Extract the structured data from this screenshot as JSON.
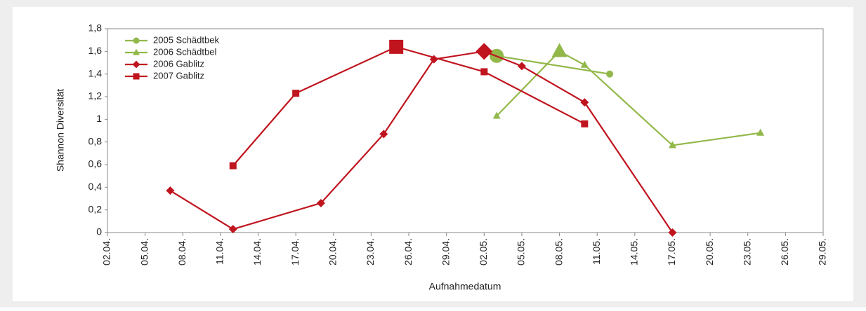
{
  "chart_data": {
    "type": "line",
    "y_label": "Shannon Diversität",
    "x_label": "Aufnahmedatum",
    "ylim": [
      0,
      1.8
    ],
    "yticks": [
      0,
      {
        "value": 0.2,
        "label": "0,2"
      },
      {
        "value": 0.4,
        "label": "0,4"
      },
      {
        "value": 0.6,
        "label": "0,6"
      },
      {
        "value": 0.8,
        "label": "0,8"
      },
      1,
      {
        "value": 1.2,
        "label": "1,2"
      },
      {
        "value": 1.4,
        "label": "1,4"
      },
      {
        "value": 1.6,
        "label": "1,6"
      },
      {
        "value": 1.8,
        "label": "1,8"
      }
    ],
    "xlim": [
      "02.04.",
      "29.05."
    ],
    "xticks": [
      "02.04.",
      "05.04.",
      "08.04.",
      "11.04.",
      "14.04.",
      "17.04.",
      "20.04.",
      "23.04.",
      "26.04.",
      "29.04.",
      "02.05.",
      "05.05.",
      "08.05.",
      "11.05.",
      "14.05.",
      "17.05.",
      "20.05.",
      "23.05.",
      "26.05.",
      "29.05."
    ],
    "legend": "top-left",
    "series": [
      {
        "name": "2005 Schädtbek",
        "color": "#92b84a",
        "marker": "circle",
        "x": [
          "03.05.",
          "12.05."
        ],
        "values": [
          1.56,
          1.4
        ]
      },
      {
        "name": "2006 Schädtbel",
        "color": "#92b84a",
        "marker": "triangle",
        "x": [
          "03.05.",
          "08.05.",
          "10.05.",
          "17.05.",
          "24.05."
        ],
        "values": [
          1.03,
          1.6,
          1.48,
          0.77,
          0.88
        ]
      },
      {
        "name": "2006 Gablitz",
        "color": "#c0141e",
        "marker": "diamond",
        "x": [
          "07.04.",
          "12.04.",
          "19.04.",
          "24.04.",
          "28.04.",
          "02.05.",
          "05.05.",
          "10.05.",
          "17.05."
        ],
        "values": [
          0.37,
          0.03,
          0.26,
          0.87,
          1.53,
          1.6,
          1.47,
          1.15,
          0
        ]
      },
      {
        "name": "2007 Gablitz",
        "color": "#c0141e",
        "marker": "square",
        "x": [
          "12.04.",
          "17.04.",
          "25.04.",
          "02.05.",
          "10.05."
        ],
        "values": [
          0.59,
          1.23,
          1.64,
          1.42,
          0.96
        ]
      }
    ]
  }
}
